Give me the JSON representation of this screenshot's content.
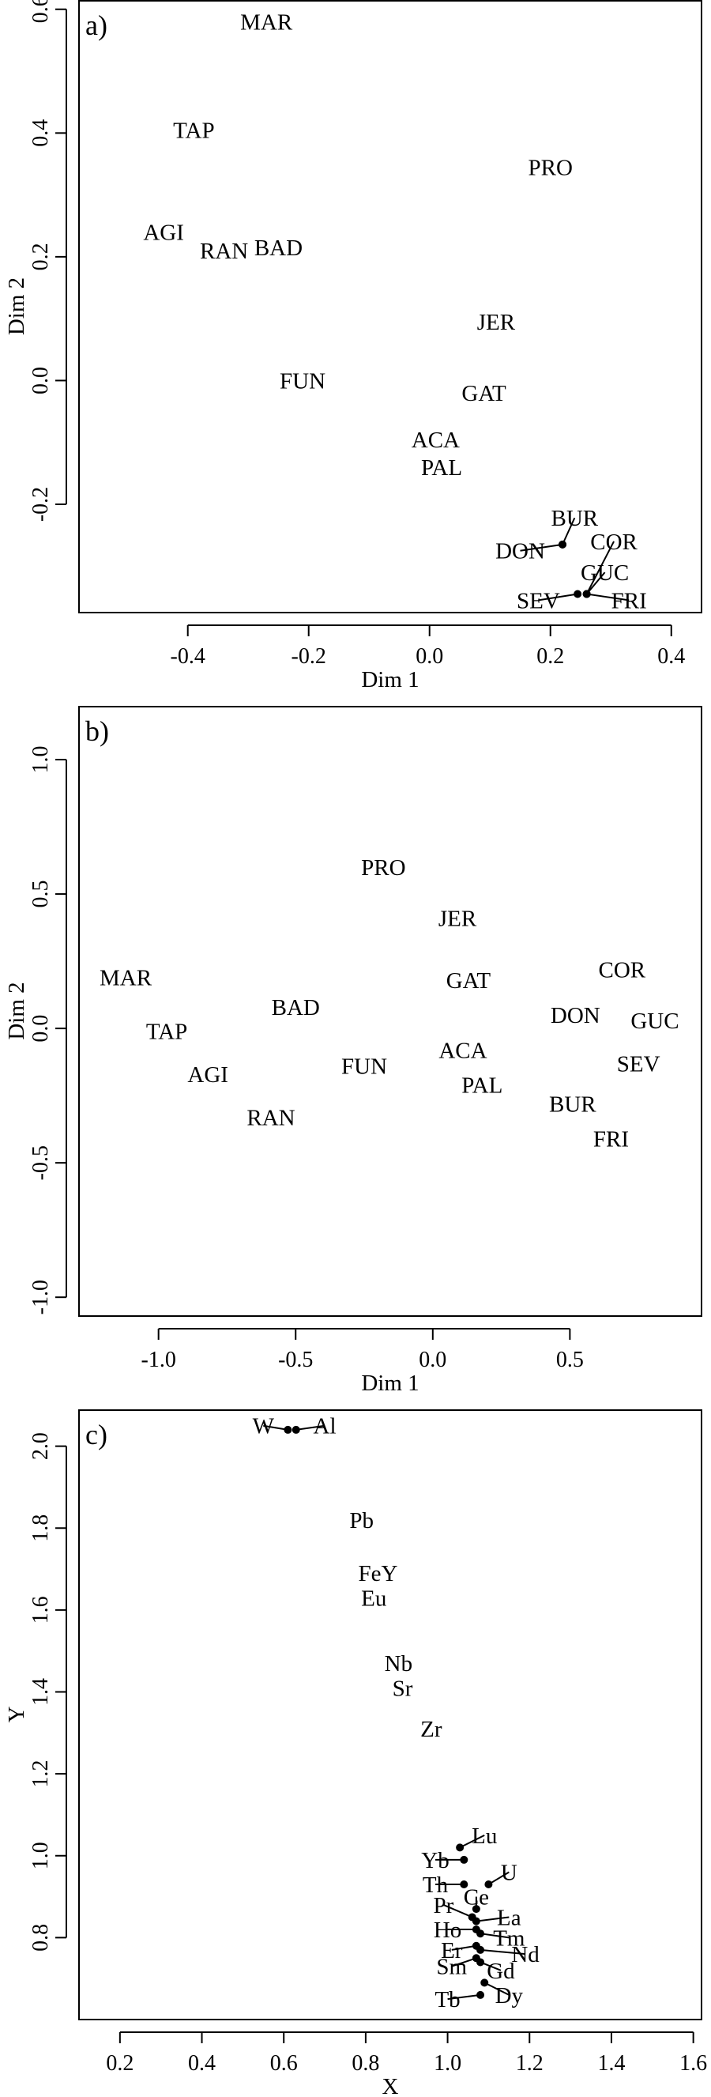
{
  "chart_data": [
    {
      "type": "scatter",
      "panel_label": "a)",
      "xlabel": "Dim 1",
      "ylabel": "Dim 2",
      "xlim": [
        -0.58,
        0.45
      ],
      "ylim": [
        -0.375,
        0.615
      ],
      "xticks": [
        -0.4,
        -0.2,
        0.0,
        0.2,
        0.4
      ],
      "xtick_labels": [
        "-0.4",
        "-0.2",
        "0.0",
        "0.2",
        "0.4"
      ],
      "yticks": [
        -0.2,
        0.0,
        0.2,
        0.4,
        0.6
      ],
      "ytick_labels": [
        "-0.2",
        "0.0",
        "0.2",
        "0.4",
        "0.6"
      ],
      "grid": false,
      "points": [
        {
          "label": "MAR",
          "x": -0.27,
          "y": 0.58
        },
        {
          "label": "TAP",
          "x": -0.39,
          "y": 0.405
        },
        {
          "label": "PRO",
          "x": 0.2,
          "y": 0.345
        },
        {
          "label": "AGI",
          "x": -0.44,
          "y": 0.24
        },
        {
          "label": "RAN",
          "x": -0.34,
          "y": 0.21
        },
        {
          "label": "BAD",
          "x": -0.25,
          "y": 0.215
        },
        {
          "label": "JER",
          "x": 0.11,
          "y": 0.095
        },
        {
          "label": "FUN",
          "x": -0.21,
          "y": 0.0
        },
        {
          "label": "GAT",
          "x": 0.09,
          "y": -0.02
        },
        {
          "label": "ACA",
          "x": 0.01,
          "y": -0.095
        },
        {
          "label": "PAL",
          "x": 0.02,
          "y": -0.14
        },
        {
          "label": "BUR",
          "x": 0.22,
          "y": -0.265,
          "lx": 0.24,
          "ly": -0.222
        },
        {
          "label": "DON",
          "x": 0.22,
          "y": -0.265,
          "lx": 0.15,
          "ly": -0.275
        },
        {
          "label": "COR",
          "x": 0.26,
          "y": -0.345,
          "lx": 0.305,
          "ly": -0.26
        },
        {
          "label": "GUC",
          "x": 0.26,
          "y": -0.345,
          "lx": 0.29,
          "ly": -0.31
        },
        {
          "label": "SEV",
          "x": 0.245,
          "y": -0.345,
          "lx": 0.18,
          "ly": -0.355
        },
        {
          "label": "FRI",
          "x": 0.26,
          "y": -0.345,
          "lx": 0.33,
          "ly": -0.355
        }
      ]
    },
    {
      "type": "scatter",
      "panel_label": "b)",
      "xlabel": "Dim 1",
      "ylabel": "Dim 2",
      "xlim": [
        -1.29,
        0.98
      ],
      "ylim": [
        -1.07,
        1.2
      ],
      "xticks": [
        -1.0,
        -0.5,
        0.0,
        0.5
      ],
      "xtick_labels": [
        "-1.0",
        "-0.5",
        "0.0",
        "0.5"
      ],
      "yticks": [
        -1.0,
        -0.5,
        0.0,
        0.5,
        1.0
      ],
      "ytick_labels": [
        "-1.0",
        "-0.5",
        "0.0",
        "0.5",
        "1.0"
      ],
      "grid": false,
      "points": [
        {
          "label": "PRO",
          "x": -0.18,
          "y": 0.6
        },
        {
          "label": "JER",
          "x": 0.09,
          "y": 0.41
        },
        {
          "label": "MAR",
          "x": -1.12,
          "y": 0.19
        },
        {
          "label": "COR",
          "x": 0.69,
          "y": 0.22
        },
        {
          "label": "GAT",
          "x": 0.13,
          "y": 0.18
        },
        {
          "label": "BAD",
          "x": -0.5,
          "y": 0.08
        },
        {
          "label": "DON",
          "x": 0.52,
          "y": 0.05
        },
        {
          "label": "GUC",
          "x": 0.81,
          "y": 0.03
        },
        {
          "label": "TAP",
          "x": -0.97,
          "y": -0.01
        },
        {
          "label": "ACA",
          "x": 0.11,
          "y": -0.08
        },
        {
          "label": "FUN",
          "x": -0.25,
          "y": -0.14
        },
        {
          "label": "SEV",
          "x": 0.75,
          "y": -0.13
        },
        {
          "label": "AGI",
          "x": -0.82,
          "y": -0.17
        },
        {
          "label": "PAL",
          "x": 0.18,
          "y": -0.21
        },
        {
          "label": "BUR",
          "x": 0.51,
          "y": -0.28
        },
        {
          "label": "RAN",
          "x": -0.59,
          "y": -0.33
        },
        {
          "label": "FRI",
          "x": 0.65,
          "y": -0.41
        }
      ]
    },
    {
      "type": "scatter",
      "panel_label": "c)",
      "xlabel": "X",
      "ylabel": "Y",
      "xlim": [
        0.1,
        1.62
      ],
      "ylim": [
        0.6,
        2.09
      ],
      "xticks": [
        0.2,
        0.4,
        0.6,
        0.8,
        1.0,
        1.2,
        1.4,
        1.6
      ],
      "xtick_labels": [
        "0.2",
        "0.4",
        "0.6",
        "0.8",
        "1.0",
        "1.2",
        "1.4",
        "1.6"
      ],
      "yticks": [
        0.8,
        1.0,
        1.2,
        1.4,
        1.6,
        1.8,
        2.0
      ],
      "ytick_labels": [
        "0.8",
        "1.0",
        "1.2",
        "1.4",
        "1.6",
        "1.8",
        "2.0"
      ],
      "grid": false,
      "points": [
        {
          "label": "W",
          "x": 0.61,
          "y": 2.04,
          "lx": 0.55,
          "ly": 2.05,
          "dot": true
        },
        {
          "label": "Al",
          "x": 0.63,
          "y": 2.04,
          "lx": 0.7,
          "ly": 2.05,
          "dot": true
        },
        {
          "label": "Pb",
          "x": 0.79,
          "y": 1.82
        },
        {
          "label": "FeY",
          "x": 0.83,
          "y": 1.69
        },
        {
          "label": "Eu",
          "x": 0.82,
          "y": 1.63
        },
        {
          "label": "Nb",
          "x": 0.88,
          "y": 1.47
        },
        {
          "label": "Sr",
          "x": 0.89,
          "y": 1.41
        },
        {
          "label": "Zr",
          "x": 0.96,
          "y": 1.31
        },
        {
          "label": "Lu",
          "x": 1.03,
          "y": 1.02,
          "lx": 1.09,
          "ly": 1.05,
          "dot": true
        },
        {
          "label": "Yb",
          "x": 1.04,
          "y": 0.99,
          "lx": 0.97,
          "ly": 0.99,
          "dot": true
        },
        {
          "label": "U",
          "x": 1.1,
          "y": 0.93,
          "lx": 1.15,
          "ly": 0.96,
          "dot": true
        },
        {
          "label": "Th",
          "x": 1.04,
          "y": 0.93,
          "lx": 0.97,
          "ly": 0.93,
          "dot": true
        },
        {
          "label": "Ce",
          "x": 1.07,
          "y": 0.87,
          "lx": 1.07,
          "ly": 0.9,
          "dot": true
        },
        {
          "label": "Pr",
          "x": 1.06,
          "y": 0.85,
          "lx": 0.99,
          "ly": 0.88,
          "dot": true
        },
        {
          "label": "La",
          "x": 1.07,
          "y": 0.84,
          "lx": 1.15,
          "ly": 0.85,
          "dot": true
        },
        {
          "label": "Ho",
          "x": 1.07,
          "y": 0.82,
          "lx": 1.0,
          "ly": 0.82,
          "dot": true
        },
        {
          "label": "Tm",
          "x": 1.08,
          "y": 0.81,
          "lx": 1.15,
          "ly": 0.8,
          "dot": true
        },
        {
          "label": "Er",
          "x": 1.07,
          "y": 0.78,
          "lx": 1.01,
          "ly": 0.77,
          "dot": true
        },
        {
          "label": "Nd",
          "x": 1.08,
          "y": 0.77,
          "lx": 1.19,
          "ly": 0.76,
          "dot": true
        },
        {
          "label": "Sm",
          "x": 1.07,
          "y": 0.75,
          "lx": 1.01,
          "ly": 0.73,
          "dot": true
        },
        {
          "label": "Gd",
          "x": 1.08,
          "y": 0.74,
          "lx": 1.13,
          "ly": 0.72,
          "dot": true
        },
        {
          "label": "Dy",
          "x": 1.09,
          "y": 0.69,
          "lx": 1.15,
          "ly": 0.66,
          "dot": true
        },
        {
          "label": "Tb",
          "x": 1.08,
          "y": 0.66,
          "lx": 1.0,
          "ly": 0.65,
          "dot": true
        }
      ]
    }
  ]
}
